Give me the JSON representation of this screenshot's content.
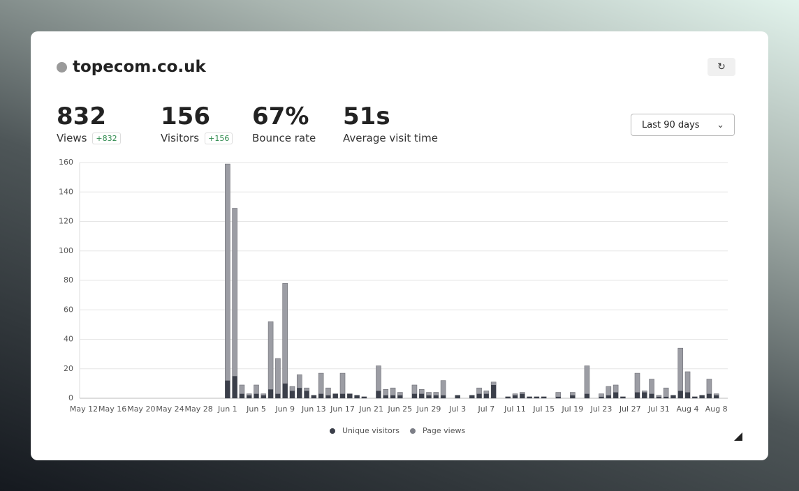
{
  "header": {
    "title": "topecom.co.uk",
    "range": "Last 90 days"
  },
  "stats": [
    {
      "value": "832",
      "label": "Views",
      "change": "+832"
    },
    {
      "value": "156",
      "label": "Visitors",
      "change": "+156"
    },
    {
      "value": "67%",
      "label": "Bounce rate"
    },
    {
      "value": "51s",
      "label": "Average visit time"
    }
  ],
  "chart_data": {
    "type": "bar",
    "mode": "overlap",
    "categories": [
      "May 12",
      null,
      null,
      null,
      "May 16",
      null,
      null,
      null,
      "May 20",
      null,
      null,
      null,
      "May 24",
      null,
      null,
      null,
      "May 28",
      null,
      null,
      null,
      "Jun 1",
      null,
      null,
      null,
      "Jun 5",
      null,
      null,
      null,
      "Jun 9",
      null,
      null,
      null,
      "Jun 13",
      null,
      null,
      null,
      "Jun 17",
      null,
      null,
      null,
      "Jun 21",
      null,
      null,
      null,
      "Jun 25",
      null,
      null,
      null,
      "Jun 29",
      null,
      null,
      null,
      "Jul 3",
      null,
      null,
      null,
      "Jul 7",
      null,
      null,
      null,
      "Jul 11",
      null,
      null,
      null,
      "Jul 15",
      null,
      null,
      null,
      "Jul 19",
      null,
      null,
      null,
      "Jul 23",
      null,
      null,
      null,
      "Jul 27",
      null,
      null,
      null,
      "Jul 31",
      null,
      null,
      null,
      "Aug 4",
      null,
      null,
      null,
      "Aug 8",
      null
    ],
    "series": [
      {
        "name": "Unique visitors",
        "color": "#3b3f4a",
        "values": [
          0,
          0,
          0,
          0,
          0,
          0,
          0,
          0,
          0,
          0,
          0,
          0,
          0,
          0,
          0,
          0,
          0,
          0,
          0,
          0,
          12,
          15,
          3,
          2,
          3,
          2,
          6,
          3,
          10,
          5,
          7,
          5,
          2,
          3,
          2,
          3,
          3,
          3,
          2,
          1,
          0,
          5,
          2,
          2,
          2,
          0,
          3,
          3,
          2,
          2,
          2,
          0,
          2,
          0,
          2,
          3,
          3,
          9,
          0,
          1,
          2,
          3,
          1,
          1,
          1,
          0,
          1,
          0,
          2,
          0,
          3,
          0,
          1,
          2,
          4,
          1,
          0,
          4,
          4,
          3,
          1,
          1,
          2,
          5,
          4,
          1,
          2,
          3,
          2,
          0
        ]
      },
      {
        "name": "Page views",
        "color": "#9c9da4",
        "values": [
          0,
          0,
          0,
          0,
          0,
          0,
          0,
          0,
          0,
          0,
          0,
          0,
          0,
          0,
          0,
          0,
          0,
          0,
          0,
          0,
          159,
          129,
          9,
          3,
          9,
          3,
          52,
          27,
          78,
          8,
          16,
          7,
          2,
          17,
          7,
          3,
          17,
          3,
          2,
          1,
          0,
          22,
          6,
          7,
          4,
          0,
          9,
          6,
          4,
          4,
          12,
          0,
          2,
          0,
          2,
          7,
          5,
          11,
          0,
          1,
          3,
          4,
          1,
          1,
          1,
          0,
          4,
          0,
          4,
          0,
          22,
          0,
          3,
          8,
          9,
          1,
          0,
          17,
          5,
          13,
          2,
          7,
          2,
          34,
          18,
          1,
          2,
          13,
          3,
          0
        ]
      }
    ],
    "ylim": [
      0,
      160
    ],
    "yticks": [
      0,
      20,
      40,
      60,
      80,
      100,
      120,
      140,
      160
    ],
    "grid": true
  }
}
